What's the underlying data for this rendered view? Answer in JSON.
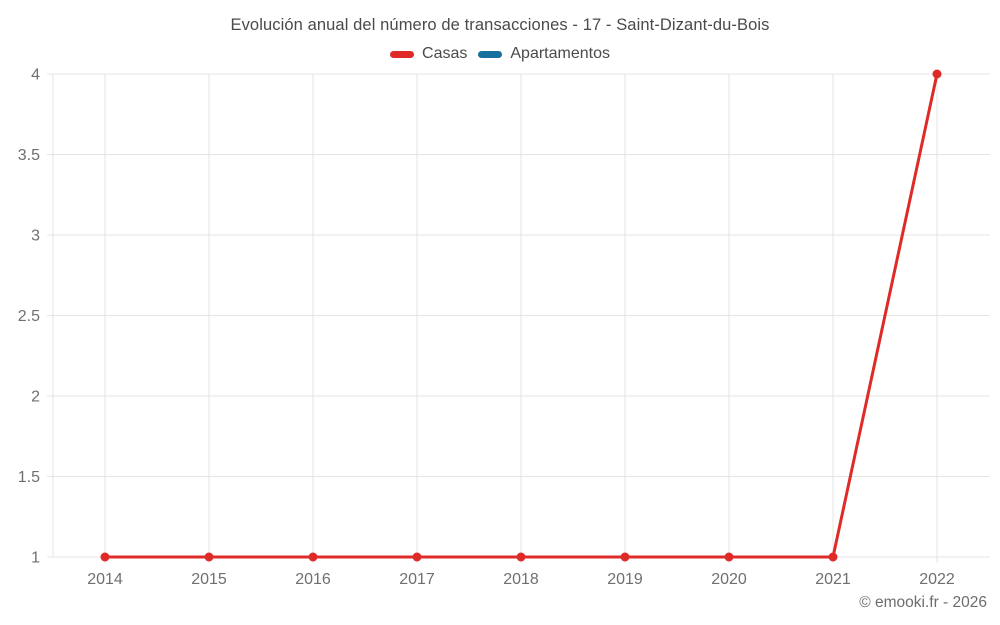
{
  "title": "Evolución anual del número de transacciones - 17 - Saint-Dizant-du-Bois",
  "legend": {
    "items": [
      {
        "label": "Casas",
        "color": "#df2b27"
      },
      {
        "label": "Apartamentos",
        "color": "#176f9e"
      }
    ]
  },
  "footer": {
    "credit": "© emooki.fr - 2026"
  },
  "colors": {
    "grid": "#e4e4e4",
    "axis_text": "#6f6f6f",
    "title_text": "#4a4a4a",
    "casas": "#df2b27",
    "apartamentos": "#176f9e"
  },
  "chart_data": {
    "type": "line",
    "title": "Evolución anual del número de transacciones - 17 - Saint-Dizant-du-Bois",
    "categories": [
      "2014",
      "2015",
      "2016",
      "2017",
      "2018",
      "2019",
      "2020",
      "2021",
      "2022"
    ],
    "series": [
      {
        "name": "Casas",
        "color": "#df2b27",
        "values": [
          1,
          1,
          1,
          1,
          1,
          1,
          1,
          1,
          4
        ]
      },
      {
        "name": "Apartamentos",
        "color": "#176f9e",
        "values": []
      }
    ],
    "xlabel": "",
    "ylabel": "",
    "ylim": [
      1,
      4
    ],
    "yticks": [
      1,
      1.5,
      2,
      2.5,
      3,
      3.5,
      4
    ],
    "grid": true,
    "legend_position": "top",
    "legend_entries": [
      "Casas",
      "Apartamentos"
    ],
    "annotations": []
  }
}
